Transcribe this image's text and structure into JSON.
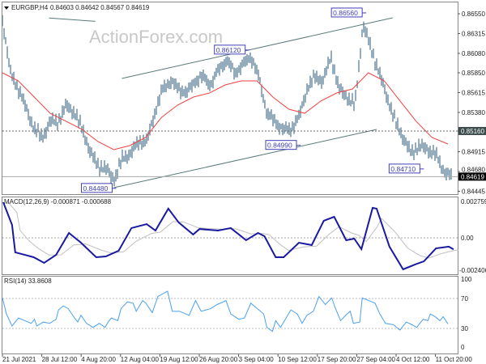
{
  "header": {
    "symbol": "EURGBP,H4",
    "ohlc": "0.84603 0.84642 0.84567 0.84619"
  },
  "watermark": "ActionForex.com",
  "colors": {
    "price_bars": "#5b8096",
    "moving_average": "#f04040",
    "trendlines": "#5a7a7a",
    "labels": "#4040b8",
    "macd": "#1a1aa0",
    "macd_signal": "#c0c0c0",
    "rsi": "#4aa0f0",
    "current_price_tag_bg": "#000000",
    "level_tag_bg": "#3a4a4a"
  },
  "chart_data": [
    {
      "type": "line",
      "panel": "price",
      "title": "EURGBP,H4",
      "x_tick_labels": [
        "21 Jul 2021",
        "28 Jul 12:00",
        "4 Aug 20:00",
        "12 Aug 04:00",
        "19 Aug 12:00",
        "26 Aug 20:00",
        "3 Sep 04:00",
        "10 Sep 12:00",
        "17 Sep 20:00",
        "27 Sep 04:00",
        "4 Oct 12:00",
        "11 Oct 20:00"
      ],
      "y_ticks": [
        0.8655,
        0.86315,
        0.8608,
        0.8585,
        0.85615,
        0.8538,
        0.8516,
        0.84915,
        0.8468,
        0.84445
      ],
      "ylim": [
        0.84445,
        0.866
      ],
      "series": [
        {
          "role": "price",
          "values": [
            0.86473,
            0.8585,
            0.85658,
            0.85418,
            0.85179,
            0.85083,
            0.85275,
            0.85275,
            0.85466,
            0.8537,
            0.85179,
            0.84891,
            0.84747,
            0.84699,
            0.84584,
            0.84843,
            0.84891,
            0.85035,
            0.85035,
            0.8537,
            0.85658,
            0.85754,
            0.85658,
            0.8561,
            0.85754,
            0.85802,
            0.85706,
            0.85898,
            0.85994,
            0.8585,
            0.85946,
            0.86042,
            0.85802,
            0.8537,
            0.85275,
            0.85179,
            0.85179,
            0.85322,
            0.85658,
            0.85802,
            0.85754,
            0.86042,
            0.85658,
            0.85562,
            0.85466,
            0.86425,
            0.86138,
            0.8585,
            0.85562,
            0.85275,
            0.85083,
            0.84891,
            0.84987,
            0.84939,
            0.84891,
            0.84699,
            0.84619
          ]
        },
        {
          "role": "moving-average",
          "values": [
            0.8585,
            0.85754,
            0.85562,
            0.8537,
            0.85275,
            0.85179,
            0.85035,
            0.84939,
            0.84987,
            0.85083,
            0.85322,
            0.85466,
            0.85562,
            0.8561,
            0.85706,
            0.85754,
            0.85754,
            0.85562,
            0.85418,
            0.8537,
            0.85514,
            0.8561,
            0.85658,
            0.8585,
            0.85754,
            0.85514,
            0.85275,
            0.85083,
            0.85006
          ]
        }
      ],
      "trendlines": [
        {
          "from": [
            14.9,
            0.85783
          ],
          "to": [
            48.7,
            0.86502
          ]
        },
        {
          "from": [
            13.9,
            0.84488
          ],
          "to": [
            46.7,
            0.85179
          ]
        },
        {
          "from": [
            5.8,
            0.865
          ],
          "to": [
            11.6,
            0.8646
          ]
        }
      ],
      "levels": {
        "dashed": 0.8516,
        "current": 0.84619
      },
      "level_tags": [
        "0.85160",
        "0.84619"
      ],
      "annotations": [
        {
          "text": "0.86120",
          "at": [
            30.8,
            0.8612
          ]
        },
        {
          "text": "0.86560",
          "at": [
            45.4,
            0.8656
          ]
        },
        {
          "text": "0.84990",
          "at": [
            37.2,
            0.8499
          ]
        },
        {
          "text": "0.84710",
          "at": [
            52.6,
            0.8471
          ]
        },
        {
          "text": "0.84480",
          "at": [
            14.2,
            0.8448
          ]
        }
      ]
    },
    {
      "type": "line",
      "panel": "macd",
      "title": "MACD(12,26,9) -0.000871 -0.000688",
      "y_tick_labels": [
        "0.002759",
        "0.00",
        "-0.002406"
      ],
      "ylim": [
        -0.002406,
        0.002759
      ],
      "macd_points": [
        [
          0.1,
          0.0027
        ],
        [
          1.2,
          0.00098
        ],
        [
          1.6,
          -0.0011
        ],
        [
          2.8,
          -0.00129
        ],
        [
          3.9,
          -0.00147
        ],
        [
          5.2,
          -0.0019
        ],
        [
          6.7,
          -0.00129
        ],
        [
          8.3,
          0.00037
        ],
        [
          9.8,
          -0.00037
        ],
        [
          11.7,
          -0.00147
        ],
        [
          12.9,
          -0.00141
        ],
        [
          14.5,
          -0.00098
        ],
        [
          16.1,
          0.00074
        ],
        [
          18.0,
          0.00104
        ],
        [
          19.1,
          0.00055
        ],
        [
          20.7,
          0.00221
        ],
        [
          22.0,
          0.00116
        ],
        [
          23.8,
          0.00025
        ],
        [
          24.6,
          0.00067
        ],
        [
          26.9,
          0.00055
        ],
        [
          28.5,
          0.00074
        ],
        [
          30.4,
          -0.00018
        ],
        [
          31.9,
          0.00037
        ],
        [
          32.7,
          0.00012
        ],
        [
          34.1,
          -0.00147
        ],
        [
          35.1,
          -0.00147
        ],
        [
          37.0,
          -0.00037
        ],
        [
          38.6,
          -0.00055
        ],
        [
          40.1,
          0.00129
        ],
        [
          41.4,
          0.00159
        ],
        [
          42.9,
          -0.00018
        ],
        [
          43.9,
          -6e-05
        ],
        [
          44.8,
          -0.00086
        ],
        [
          46.2,
          0.00227
        ],
        [
          46.7,
          0.00221
        ],
        [
          48.3,
          -0.00067
        ],
        [
          50.0,
          -0.00239
        ],
        [
          51.5,
          -0.00202
        ],
        [
          52.6,
          -0.00178
        ],
        [
          54.1,
          -0.0008
        ],
        [
          55.7,
          -0.00067
        ],
        [
          56.3,
          -0.00087
        ]
      ]
    },
    {
      "type": "line",
      "panel": "rsi",
      "title": "RSI(14) 33.8608",
      "y_tick_labels": [
        "100",
        "70",
        "30",
        "0"
      ],
      "ylim": [
        0,
        100
      ],
      "levels": [
        70,
        30
      ],
      "points": [
        [
          0,
          72.3
        ],
        [
          0.5,
          48.6
        ],
        [
          1.2,
          30.9
        ],
        [
          2.0,
          42.7
        ],
        [
          2.8,
          38.8
        ],
        [
          3.6,
          34.8
        ],
        [
          4.0,
          40.8
        ],
        [
          4.3,
          30.9
        ],
        [
          5.1,
          36.8
        ],
        [
          5.9,
          34.8
        ],
        [
          6.7,
          40.8
        ],
        [
          7.0,
          54.6
        ],
        [
          7.6,
          60.5
        ],
        [
          8.2,
          56.6
        ],
        [
          9.0,
          42.7
        ],
        [
          9.4,
          36.8
        ],
        [
          9.8,
          46.6
        ],
        [
          10.5,
          34.8
        ],
        [
          11.3,
          28.9
        ],
        [
          12.1,
          34.8
        ],
        [
          12.8,
          28.9
        ],
        [
          13.2,
          36.8
        ],
        [
          13.6,
          42.7
        ],
        [
          14.4,
          38.8
        ],
        [
          14.8,
          56.6
        ],
        [
          15.6,
          66.4
        ],
        [
          16.3,
          64.5
        ],
        [
          16.7,
          52.6
        ],
        [
          17.5,
          68.4
        ],
        [
          17.9,
          64.5
        ],
        [
          18.7,
          50.6
        ],
        [
          19.4,
          74.3
        ],
        [
          20.6,
          82.2
        ],
        [
          21.2,
          52.6
        ],
        [
          22.1,
          52.6
        ],
        [
          23.3,
          46.6
        ],
        [
          24.1,
          68.4
        ],
        [
          24.8,
          52.6
        ],
        [
          26.0,
          56.6
        ],
        [
          26.8,
          62.5
        ],
        [
          27.9,
          68.4
        ],
        [
          28.5,
          48.6
        ],
        [
          29.5,
          40.8
        ],
        [
          30.2,
          42.7
        ],
        [
          31.0,
          64.5
        ],
        [
          31.8,
          56.6
        ],
        [
          32.6,
          48.6
        ],
        [
          33.0,
          28.9
        ],
        [
          33.7,
          23.0
        ],
        [
          34.1,
          38.8
        ],
        [
          34.7,
          28.9
        ],
        [
          35.3,
          40.8
        ],
        [
          36.0,
          54.6
        ],
        [
          36.8,
          48.6
        ],
        [
          37.4,
          34.8
        ],
        [
          38.0,
          46.6
        ],
        [
          38.8,
          52.6
        ],
        [
          39.5,
          74.3
        ],
        [
          40.3,
          62.5
        ],
        [
          41.1,
          72.3
        ],
        [
          41.5,
          58.5
        ],
        [
          42.2,
          38.8
        ],
        [
          43.0,
          48.6
        ],
        [
          43.4,
          52.6
        ],
        [
          43.8,
          34.8
        ],
        [
          44.6,
          36.8
        ],
        [
          44.9,
          72.3
        ],
        [
          45.7,
          68.4
        ],
        [
          46.5,
          64.5
        ],
        [
          47.1,
          48.6
        ],
        [
          47.8,
          34.8
        ],
        [
          48.8,
          32.9
        ],
        [
          49.6,
          25.0
        ],
        [
          50.4,
          36.8
        ],
        [
          51.1,
          32.9
        ],
        [
          51.7,
          28.9
        ],
        [
          52.5,
          40.8
        ],
        [
          53.1,
          38.8
        ],
        [
          53.4,
          48.6
        ],
        [
          54.0,
          44.7
        ],
        [
          54.6,
          38.8
        ],
        [
          55.0,
          44.7
        ],
        [
          55.6,
          33.9
        ]
      ]
    }
  ]
}
